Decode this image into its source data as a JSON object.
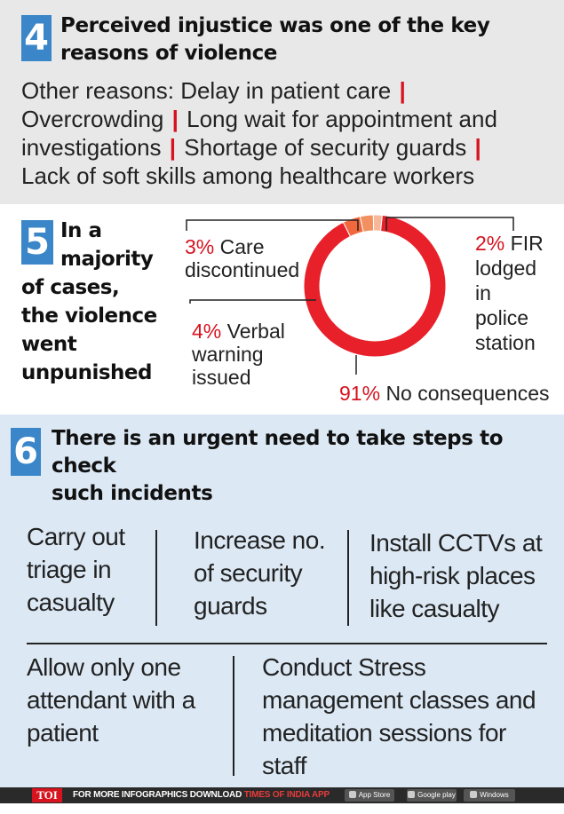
{
  "section4": {
    "number": "4",
    "title": [
      "Perceived injustice was one of the key",
      "reasons of violence"
    ],
    "intro": "Other reasons: Delay in patient care",
    "reasons": [
      "Overcrowding",
      "Long wait for appointment and investigations",
      "Shortage of security guards",
      "Lack of soft skills among healthcare workers"
    ]
  },
  "section5": {
    "number": "5",
    "headline": [
      "In a",
      "majority",
      "of cases,",
      "the violence",
      "went",
      "unpunished"
    ],
    "labels": {
      "care": {
        "pct": "3%",
        "line1": "Care",
        "line2": "discontinued"
      },
      "verbal": {
        "pct": "4%",
        "line1": "Verbal",
        "line2": "warning",
        "line3": "issued"
      },
      "fir": {
        "pct": "2%",
        "line1": "FIR",
        "line2": "lodged",
        "line3": "in",
        "line4": "police",
        "line5": "station"
      },
      "none": {
        "pct": "91%",
        "line1": "No consequences"
      }
    }
  },
  "chart_data": {
    "type": "pie",
    "categories": [
      "No consequences",
      "Verbal warning issued",
      "Care discontinued",
      "FIR lodged in police station"
    ],
    "values": [
      91,
      4,
      3,
      2
    ],
    "colors": [
      "#e8202a",
      "#f0683c",
      "#f3905f",
      "#f6b899"
    ]
  },
  "section6": {
    "number": "6",
    "title": [
      "There is an urgent need to take steps to check",
      "such incidents"
    ],
    "items": [
      [
        "Carry out",
        "triage in",
        "casualty"
      ],
      [
        "Increase no.",
        "of security",
        "guards"
      ],
      [
        "Install CCTVs at",
        "high-risk places",
        "like casualty"
      ],
      [
        "Allow only one",
        "attendant with a",
        "patient"
      ],
      [
        "Conduct Stress",
        "management classes and",
        "meditation sessions for",
        "staff"
      ]
    ]
  },
  "footer": {
    "brand": "TOI",
    "text": "FOR MORE  INFOGRAPHICS DOWNLOAD",
    "app": "TIMES OF INDIA APP",
    "stores": [
      "App Store",
      "Google play",
      "Windows Phone"
    ]
  }
}
